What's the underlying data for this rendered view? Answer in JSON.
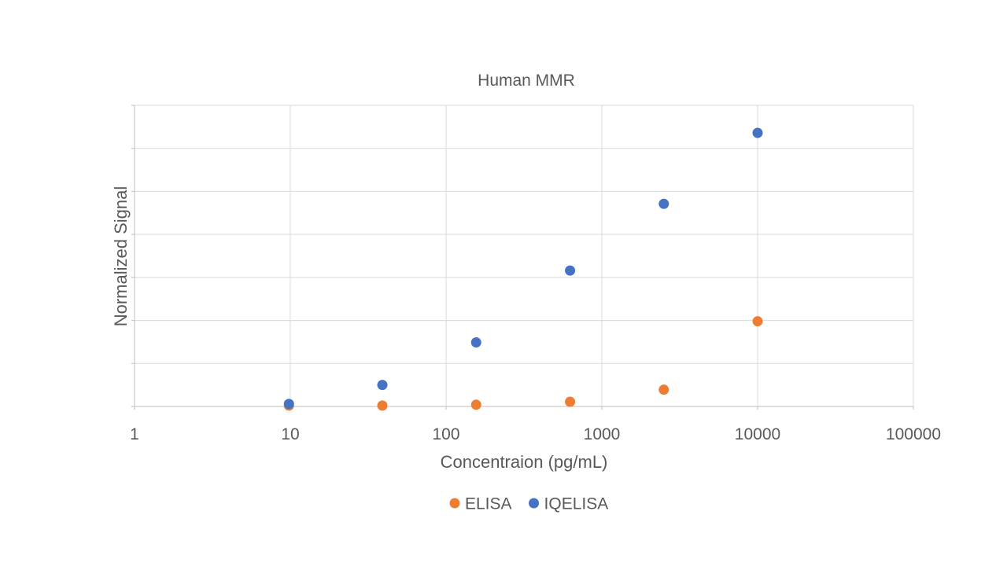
{
  "chart_data": {
    "type": "scatter",
    "title": "Human MMR",
    "xlabel": "Concentraion (pg/mL)",
    "ylabel": "Normalized Signal",
    "x_scale": "log",
    "xlim": [
      1,
      100000
    ],
    "x_ticks": [
      "1",
      "10",
      "100",
      "1000",
      "10000",
      "100000"
    ],
    "ylim": [
      0,
      7
    ],
    "y_tick_labels_shown": false,
    "grid": true,
    "legend": "bottom",
    "series": [
      {
        "name": "ELISA",
        "color": "#ED7D31",
        "points": [
          {
            "x": 9.8,
            "y": 0.02
          },
          {
            "x": 39,
            "y": 0.02
          },
          {
            "x": 156,
            "y": 0.04
          },
          {
            "x": 625,
            "y": 0.11
          },
          {
            "x": 2500,
            "y": 0.39
          },
          {
            "x": 10000,
            "y": 1.98
          }
        ]
      },
      {
        "name": "IQELISA",
        "color": "#4472C4",
        "points": [
          {
            "x": 9.8,
            "y": 0.06
          },
          {
            "x": 39,
            "y": 0.5
          },
          {
            "x": 156,
            "y": 1.49
          },
          {
            "x": 625,
            "y": 3.16
          },
          {
            "x": 2500,
            "y": 4.71
          },
          {
            "x": 10000,
            "y": 6.36
          }
        ]
      }
    ]
  }
}
